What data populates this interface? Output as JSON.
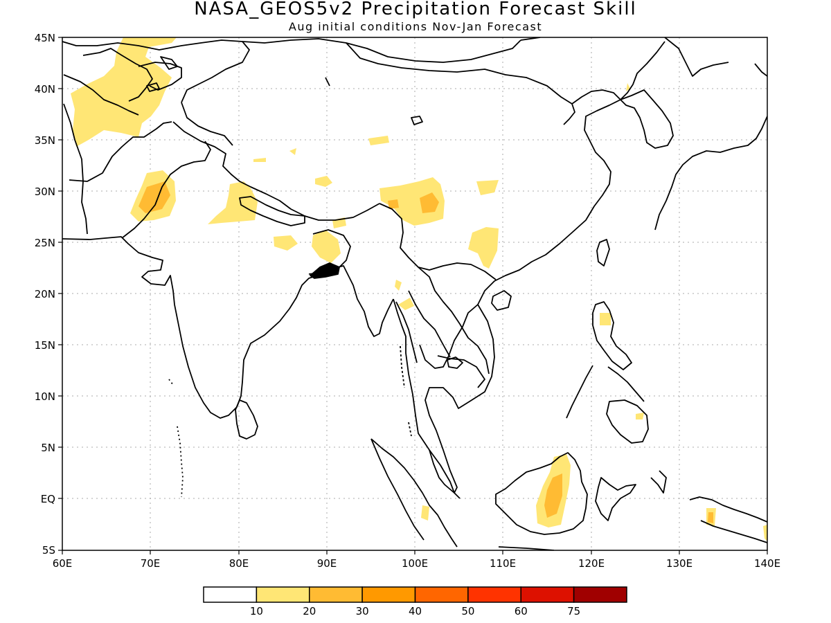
{
  "title": "NASA_GEOS5v2 Precipitation Forecast Skill",
  "subtitle": "Aug initial conditions  Nov-Jan Forecast",
  "map": {
    "lon_range": [
      60,
      140
    ],
    "lat_range": [
      -5,
      45
    ],
    "grid": true,
    "lat_labels": [
      "45N",
      "40N",
      "35N",
      "30N",
      "25N",
      "20N",
      "15N",
      "10N",
      "5N",
      "EQ",
      "5S"
    ],
    "lon_labels": [
      "60E",
      "70E",
      "80E",
      "90E",
      "100E",
      "110E",
      "120E",
      "130E",
      "140E"
    ]
  },
  "colorbar": {
    "colors": [
      "#ffffff",
      "#ffe675",
      "#ffbb33",
      "#ff9900",
      "#ff6600",
      "#ff3300",
      "#dd1100",
      "#a00000"
    ],
    "labels": [
      "10",
      "20",
      "30",
      "40",
      "50",
      "60",
      "75"
    ]
  },
  "chart_data": {
    "type": "heatmap",
    "title": "NASA_GEOS5v2 Precipitation Forecast Skill",
    "subtitle": "Aug initial conditions  Nov-Jan Forecast",
    "x_range": [
      60,
      140
    ],
    "y_range": [
      -5,
      45
    ],
    "levels": [
      10,
      20,
      30,
      40,
      50,
      60,
      75
    ],
    "regions": [
      {
        "name": "",
        "center_lon": 71,
        "center_lat": 30,
        "max_level": 30
      },
      {
        "name": "",
        "center_lon": 68,
        "center_lat": 40,
        "max_level": 20
      },
      {
        "name": "",
        "center_lon": 99,
        "center_lat": 29,
        "max_level": 30
      },
      {
        "name": "",
        "center_lon": 116,
        "center_lat": 1,
        "max_level": 30
      },
      {
        "name": "",
        "center_lon": 133.5,
        "center_lat": -2,
        "max_level": 30
      }
    ]
  }
}
